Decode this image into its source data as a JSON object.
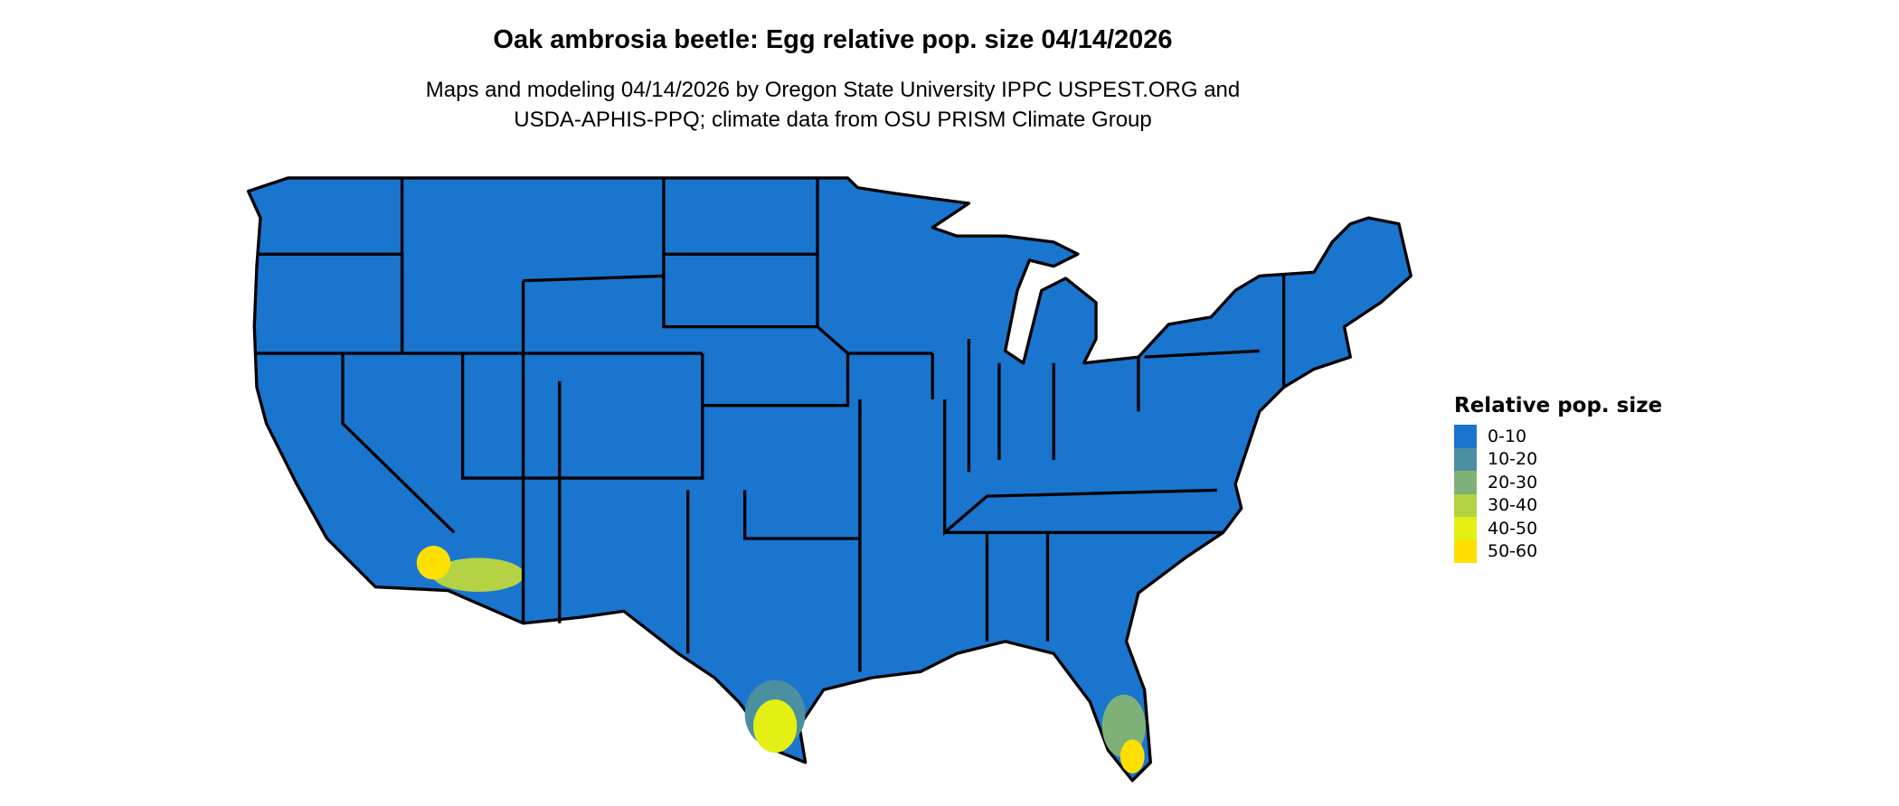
{
  "title": "Oak ambrosia beetle: Egg relative pop. size 04/14/2026",
  "subtitle_line1": "Maps and modeling 04/14/2026 by Oregon State University IPPC USPEST.ORG and",
  "subtitle_line2": "USDA-APHIS-PPQ; climate data from OSU PRISM Climate Group",
  "map": {
    "region": "Contiguous United States",
    "base_color": "#1a75cf",
    "border_color": "#000000"
  },
  "legend": {
    "title": "Relative pop. size",
    "items": [
      {
        "label": "0-10",
        "color": "#1a75cf"
      },
      {
        "label": "10-20",
        "color": "#4a90a0"
      },
      {
        "label": "20-30",
        "color": "#7fb077"
      },
      {
        "label": "30-40",
        "color": "#b4d243"
      },
      {
        "label": "40-50",
        "color": "#e4ef14"
      },
      {
        "label": "50-60",
        "color": "#fde000"
      }
    ]
  }
}
